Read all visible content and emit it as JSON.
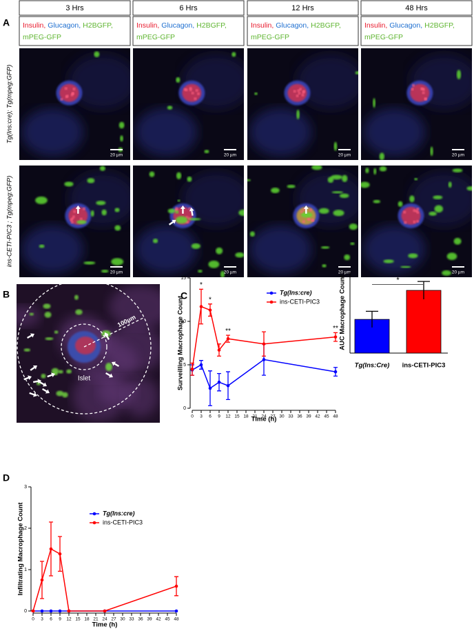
{
  "panel_labels": [
    "A",
    "B",
    "C",
    "D"
  ],
  "panel_a": {
    "columns": [
      "3 Hrs",
      "6 Hrs",
      "12 Hrs",
      "48 Hrs"
    ],
    "channels": [
      {
        "text": "Insulin,",
        "color": "#e8192c"
      },
      {
        "text": "Glucagon,",
        "color": "#1e6fd0"
      },
      {
        "text": "H2BGFP,",
        "color": "#5fb531"
      },
      {
        "text": "mPEG-GFP",
        "color": "#5fb531"
      }
    ],
    "rows": [
      "Tg(Ins:cre); Tg(mpeg:GFP)",
      "ins-CETI-PIC3 ; Tg(mpeg:GFP)"
    ],
    "scale_bar": "20 µm"
  },
  "panel_b": {
    "radius_label": "100µm",
    "islet_label": "Islet"
  },
  "chart_data": [
    {
      "type": "line",
      "xlabel": "Time (h)",
      "ylabel": "Surveilling Macrophage Count",
      "x": [
        0,
        3,
        6,
        9,
        12,
        24,
        48
      ],
      "xlim": [
        0,
        48
      ],
      "xticks": [
        0,
        3,
        6,
        9,
        12,
        15,
        18,
        21,
        24,
        27,
        30,
        33,
        36,
        39,
        42,
        45,
        48
      ],
      "ylim": [
        0,
        15
      ],
      "yticks": [
        0,
        5,
        10,
        15
      ],
      "series": [
        {
          "name": "Tg(Ins:cre)",
          "color": "#0000ff",
          "values": [
            4.4,
            5.0,
            2.3,
            3.0,
            2.6,
            5.6,
            4.2
          ],
          "errors": [
            0.6,
            0.5,
            2.0,
            1.0,
            1.6,
            1.8,
            0.5
          ]
        },
        {
          "name": "ins-CETI-PIC3",
          "color": "#ff0000",
          "values": [
            4.5,
            11.7,
            11.3,
            6.7,
            8.0,
            7.4,
            8.2
          ],
          "errors": [
            0.7,
            2.0,
            0.7,
            0.7,
            0.4,
            1.4,
            0.5
          ]
        }
      ],
      "annotations": [
        {
          "x": 3,
          "text": "*"
        },
        {
          "x": 6,
          "text": "*"
        },
        {
          "x": 12,
          "text": "**"
        },
        {
          "x": 48,
          "text": "**"
        }
      ]
    },
    {
      "type": "bar",
      "ylabel": "AUC Macrophage Count",
      "categories": [
        "Tg(Ins:Cre)",
        "ins-CETI-PIC3"
      ],
      "values": [
        208,
        387
      ],
      "errors": [
        50,
        55
      ],
      "colors": [
        "#0000ff",
        "#ff0000"
      ],
      "ylim": [
        0,
        500
      ],
      "significance": "*"
    },
    {
      "type": "line",
      "xlabel": "Time (h)",
      "ylabel": "Infiltrating Macrophage Count",
      "x": [
        0,
        3,
        6,
        9,
        12,
        24,
        48
      ],
      "xlim": [
        0,
        48
      ],
      "xticks": [
        0,
        3,
        6,
        9,
        12,
        15,
        18,
        21,
        24,
        27,
        30,
        33,
        36,
        39,
        42,
        45,
        48
      ],
      "ylim": [
        0,
        3
      ],
      "yticks": [
        0,
        1,
        2,
        3
      ],
      "series": [
        {
          "name": "Tg(Ins:cre)",
          "color": "#0000ff",
          "values": [
            0,
            0,
            0,
            0,
            0,
            0,
            0
          ]
        },
        {
          "name": "ins-CETI-PIC3",
          "color": "#ff0000",
          "values": [
            0,
            0.75,
            1.5,
            1.38,
            0,
            0,
            0.6
          ],
          "errors": [
            0,
            0.45,
            0.65,
            0.42,
            0,
            0,
            0.23
          ]
        }
      ]
    }
  ]
}
